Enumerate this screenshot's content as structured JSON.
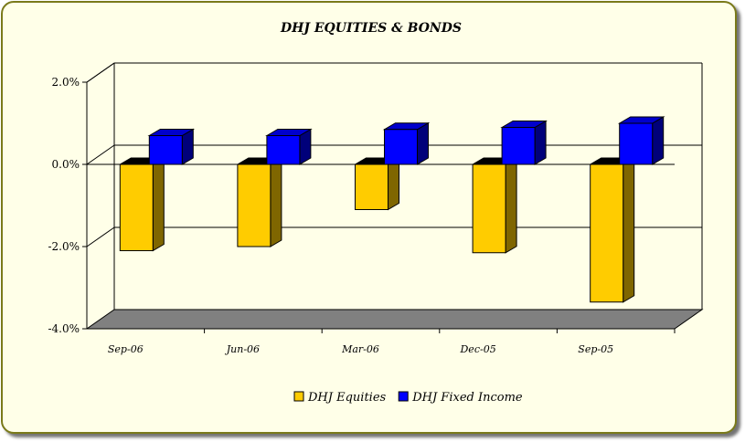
{
  "chart_data": {
    "type": "bar",
    "title": "DHJ EQUITIES & BONDS",
    "categories": [
      "Sep-06",
      "Jun-06",
      "Mar-06",
      "Dec-05",
      "Sep-05"
    ],
    "series": [
      {
        "name": "DHJ Equities",
        "values": [
          -2.1,
          -2.0,
          -1.1,
          -2.15,
          -3.35
        ],
        "color": "#ffcc00",
        "side_color": "#7f6600",
        "top_color": "#000000"
      },
      {
        "name": "DHJ Fixed Income",
        "values": [
          0.7,
          0.7,
          0.85,
          0.9,
          1.0
        ],
        "color": "#0000ff",
        "side_color": "#00007a",
        "top_color": "#0000cc"
      }
    ],
    "y_ticks": [
      {
        "value": 2.0,
        "label": "2.0%"
      },
      {
        "value": 0.0,
        "label": "0.0%"
      },
      {
        "value": -2.0,
        "label": "-2.0%"
      },
      {
        "value": -4.0,
        "label": "-4.0%"
      }
    ],
    "ylim": [
      -4.0,
      2.0
    ],
    "xlabel": "",
    "ylabel": "",
    "grid": true,
    "three_d": true,
    "legend_position": "bottom",
    "floor_color": "#808080",
    "background_color": "#ffffe8"
  }
}
